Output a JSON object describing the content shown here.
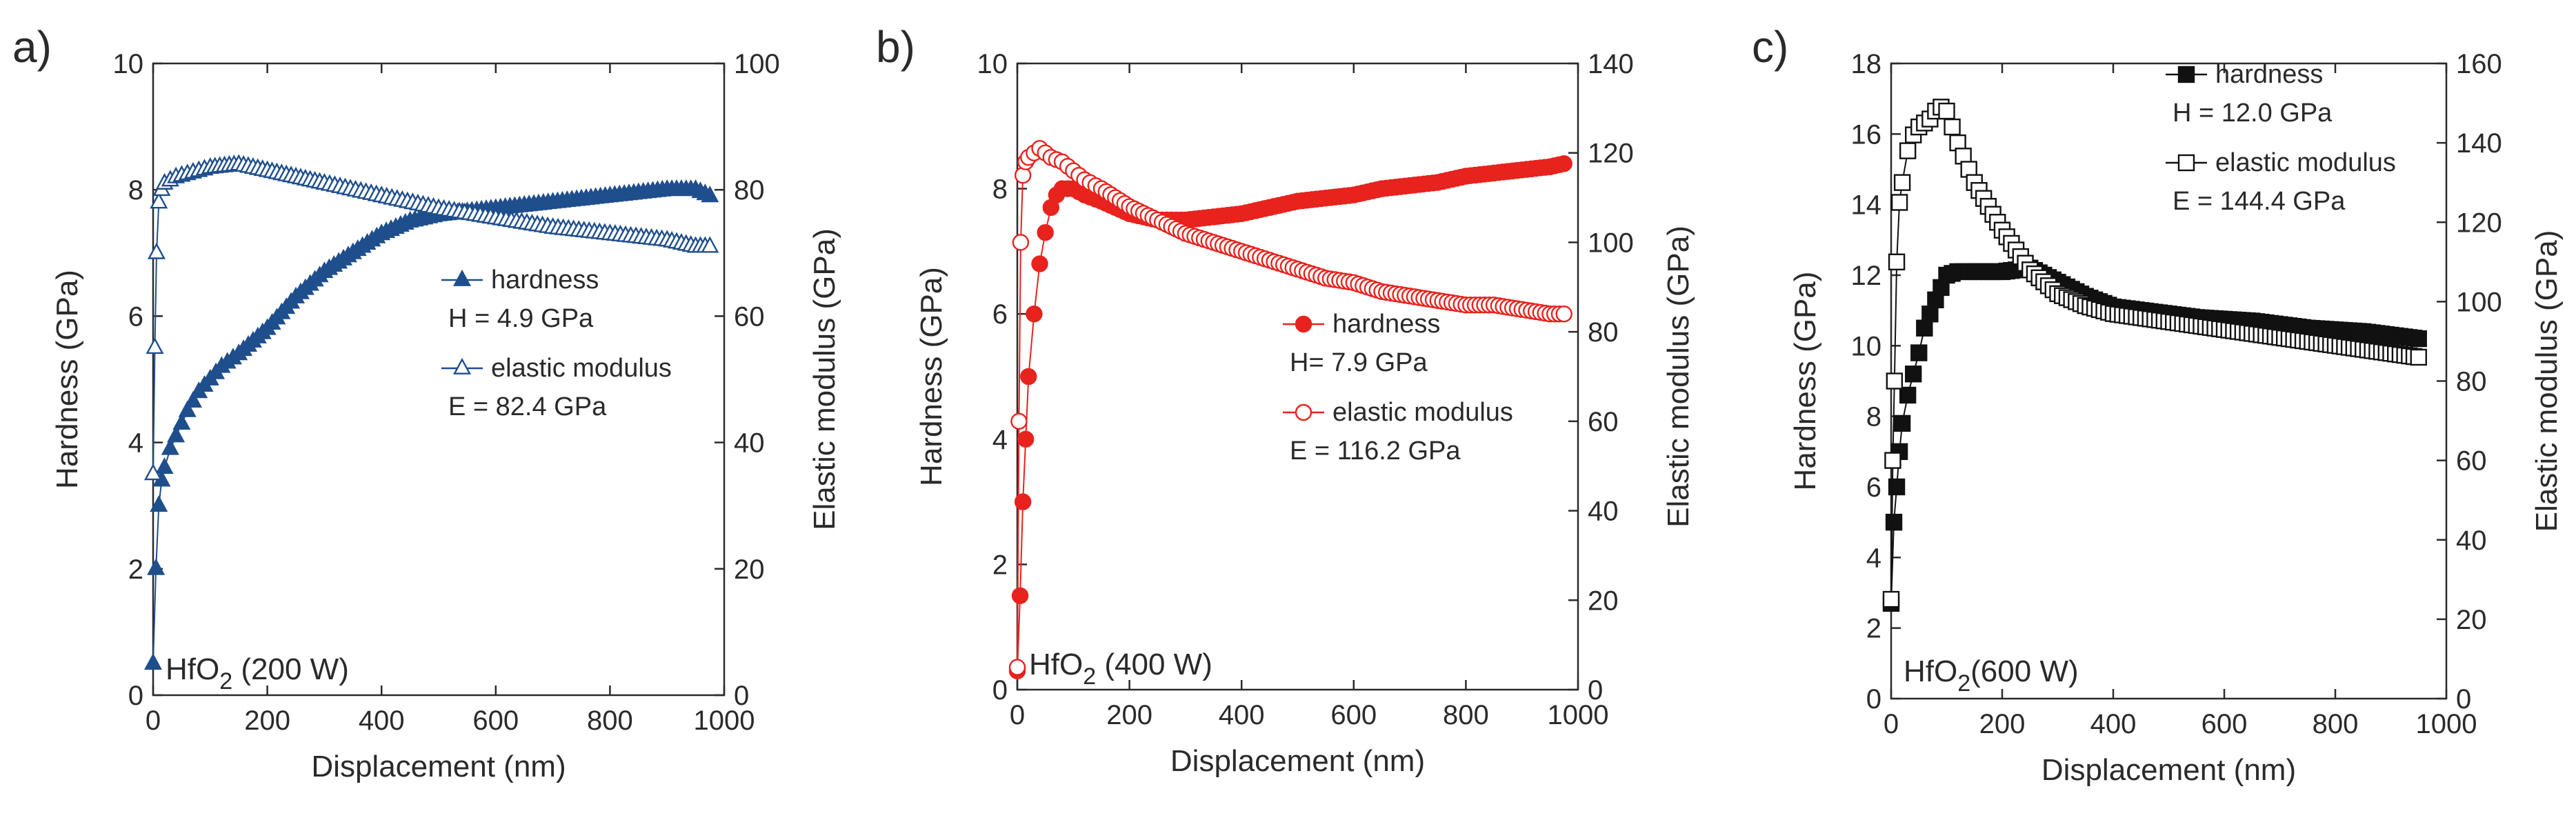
{
  "chart_data": [
    {
      "panel_label": "a)",
      "type": "scatter",
      "xlabel": "Displacement (nm)",
      "ylabel_left": "Hardness (GPa)",
      "ylabel_right": "Elastic modulus (GPa)",
      "xlim": [
        0,
        1000
      ],
      "ylim_left": [
        0,
        10
      ],
      "ylim_right": [
        0,
        100
      ],
      "xticks": [
        0,
        200,
        400,
        600,
        800,
        1000
      ],
      "yticks_left": [
        0,
        2,
        4,
        6,
        8,
        10
      ],
      "yticks_right": [
        0,
        20,
        40,
        60,
        80,
        100
      ],
      "annotation": {
        "prefix": "HfO",
        "sub": "2",
        "suffix": " (200 W)"
      },
      "legend": [
        {
          "label": "hardness",
          "value_text": "H = 4.9 GPa"
        },
        {
          "label": "elastic modulus",
          "value_text": "E = 82.4 GPa"
        }
      ],
      "colors": {
        "primary": "#1f4e8c",
        "open_fill": "#ffffff"
      },
      "series": [
        {
          "name": "hardness",
          "axis": "left",
          "marker": "triangle-filled",
          "x": [
            0,
            5,
            10,
            15,
            20,
            30,
            40,
            50,
            60,
            80,
            100,
            120,
            150,
            200,
            250,
            300,
            350,
            400,
            450,
            500,
            550,
            600,
            650,
            700,
            750,
            800,
            850,
            900,
            950,
            975
          ],
          "y": [
            0.5,
            2.0,
            3.0,
            3.4,
            3.6,
            3.9,
            4.1,
            4.3,
            4.5,
            4.8,
            5.0,
            5.2,
            5.4,
            5.8,
            6.3,
            6.7,
            7.0,
            7.3,
            7.5,
            7.6,
            7.65,
            7.7,
            7.75,
            7.8,
            7.85,
            7.9,
            7.95,
            8.0,
            8.0,
            7.9
          ]
        },
        {
          "name": "elastic modulus",
          "axis": "right",
          "marker": "triangle-open",
          "x": [
            0,
            3,
            6,
            10,
            15,
            20,
            30,
            40,
            60,
            80,
            100,
            150,
            200,
            250,
            300,
            400,
            500,
            600,
            700,
            800,
            900,
            950,
            975
          ],
          "y": [
            35,
            55,
            70,
            78,
            80,
            81,
            81.5,
            82,
            82.5,
            83,
            83.5,
            84,
            83,
            82,
            81,
            79,
            77,
            75.5,
            74,
            73,
            72,
            71,
            71
          ]
        }
      ]
    },
    {
      "panel_label": "b)",
      "type": "scatter",
      "xlabel": "Displacement (nm)",
      "ylabel_left": "Hardness (GPa)",
      "ylabel_right": "Elastic modulus (GPa)",
      "xlim": [
        0,
        1000
      ],
      "ylim_left": [
        0,
        10
      ],
      "ylim_right": [
        0,
        140
      ],
      "xticks": [
        0,
        200,
        400,
        600,
        800,
        1000
      ],
      "yticks_left": [
        0,
        2,
        4,
        6,
        8,
        10
      ],
      "yticks_right": [
        0,
        20,
        40,
        60,
        80,
        100,
        120,
        140
      ],
      "annotation": {
        "prefix": "HfO",
        "sub": "2",
        "suffix": " (400 W)"
      },
      "legend": [
        {
          "label": "hardness",
          "value_text": "H= 7.9 GPa"
        },
        {
          "label": "elastic modulus",
          "value_text": "E = 116.2 GPa"
        }
      ],
      "colors": {
        "primary": "#e8221d",
        "open_fill": "#ffffff"
      },
      "series": [
        {
          "name": "hardness",
          "axis": "left",
          "marker": "circle-filled",
          "x": [
            0,
            5,
            10,
            15,
            20,
            30,
            40,
            50,
            60,
            70,
            80,
            100,
            120,
            150,
            200,
            250,
            300,
            350,
            400,
            450,
            500,
            550,
            600,
            650,
            700,
            750,
            800,
            850,
            900,
            950,
            975
          ],
          "y": [
            0.3,
            1.5,
            3.0,
            4.0,
            5.0,
            6.0,
            6.8,
            7.3,
            7.7,
            7.9,
            8.0,
            8.0,
            7.9,
            7.8,
            7.6,
            7.5,
            7.5,
            7.55,
            7.6,
            7.7,
            7.8,
            7.85,
            7.9,
            8.0,
            8.05,
            8.1,
            8.2,
            8.25,
            8.3,
            8.35,
            8.4
          ]
        },
        {
          "name": "elastic modulus",
          "axis": "right",
          "marker": "circle-open",
          "x": [
            0,
            3,
            6,
            10,
            15,
            20,
            30,
            40,
            50,
            60,
            80,
            100,
            120,
            150,
            200,
            250,
            300,
            350,
            400,
            450,
            500,
            550,
            600,
            650,
            700,
            750,
            800,
            850,
            900,
            950,
            975
          ],
          "y": [
            5,
            60,
            100,
            115,
            118,
            119,
            120,
            121,
            120,
            119,
            118,
            116,
            114,
            112,
            108,
            105,
            102,
            100,
            98,
            96,
            94,
            92,
            91,
            89,
            88,
            87,
            86,
            86,
            85,
            84,
            84
          ]
        }
      ]
    },
    {
      "panel_label": "c)",
      "type": "scatter",
      "xlabel": "Displacement (nm)",
      "ylabel_left": "Hardness (GPa)",
      "ylabel_right": "Elastic modulus (GPa)",
      "xlim": [
        0,
        1000
      ],
      "ylim_left": [
        0,
        18
      ],
      "ylim_right": [
        0,
        160
      ],
      "xticks": [
        0,
        200,
        400,
        600,
        800,
        1000
      ],
      "yticks_left": [
        0,
        2,
        4,
        6,
        8,
        10,
        12,
        14,
        16,
        18
      ],
      "yticks_right": [
        0,
        20,
        40,
        60,
        80,
        100,
        120,
        140,
        160
      ],
      "annotation": {
        "prefix": "HfO",
        "sub": "2",
        "suffix": "(600 W)"
      },
      "legend": [
        {
          "label": "hardness",
          "value_text": "H = 12.0 GPa"
        },
        {
          "label": "elastic modulus",
          "value_text": "E = 144.4 GPa"
        }
      ],
      "colors": {
        "primary": "#111111",
        "open_fill": "#ffffff"
      },
      "series": [
        {
          "name": "hardness",
          "axis": "left",
          "marker": "square-filled",
          "x": [
            0,
            5,
            10,
            15,
            20,
            30,
            40,
            50,
            60,
            80,
            100,
            120,
            150,
            200,
            250,
            300,
            350,
            400,
            450,
            500,
            550,
            600,
            650,
            700,
            750,
            800,
            850,
            900,
            950
          ],
          "y": [
            2.7,
            5,
            6,
            7,
            7.8,
            8.6,
            9.2,
            9.8,
            10.5,
            11.3,
            12,
            12.1,
            12.1,
            12.1,
            12.2,
            11.8,
            11.4,
            11.1,
            11,
            10.9,
            10.8,
            10.75,
            10.7,
            10.6,
            10.5,
            10.45,
            10.4,
            10.3,
            10.2
          ]
        },
        {
          "name": "elastic modulus",
          "axis": "right",
          "marker": "square-open",
          "x": [
            0,
            3,
            6,
            10,
            15,
            20,
            30,
            40,
            50,
            60,
            70,
            80,
            90,
            100,
            120,
            150,
            200,
            250,
            300,
            350,
            400,
            450,
            500,
            550,
            600,
            650,
            700,
            750,
            800,
            850,
            900,
            950
          ],
          "y": [
            25,
            60,
            80,
            110,
            125,
            130,
            138,
            142,
            144,
            145,
            146,
            148,
            149,
            148,
            140,
            130,
            118,
            108,
            102,
            99,
            97,
            96,
            95,
            94,
            93,
            92,
            91,
            90,
            89,
            88,
            87,
            86
          ]
        }
      ]
    }
  ]
}
